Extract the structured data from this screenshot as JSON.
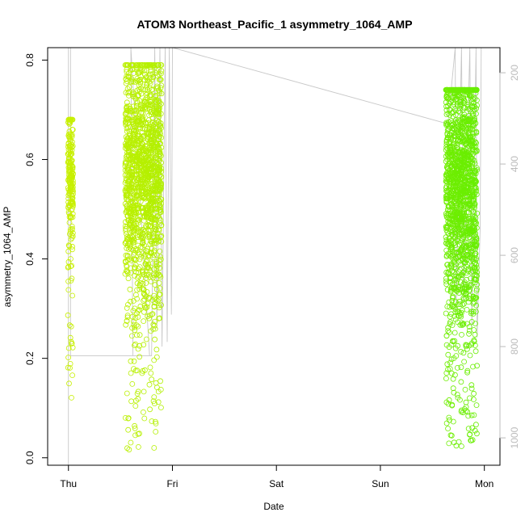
{
  "chart_data": {
    "type": "scatter",
    "title": "ATOM3 Northeast_Pacific_1 asymmetry_1064_AMP",
    "xlabel": "Date",
    "ylabel": "asymmetry_1064_AMP",
    "x_unit": "days",
    "x_ticks": [
      {
        "value": 0,
        "label": "Thu"
      },
      {
        "value": 1,
        "label": "Fri"
      },
      {
        "value": 2,
        "label": "Sat"
      },
      {
        "value": 3,
        "label": "Sun"
      },
      {
        "value": 4,
        "label": "Mon"
      }
    ],
    "xlim": [
      -0.2,
      4.15
    ],
    "ylim": [
      -0.015,
      0.825
    ],
    "y_ticks": [
      0.0,
      0.2,
      0.4,
      0.6,
      0.8
    ],
    "y_right_ticks": [
      200,
      400,
      600,
      800,
      1000
    ],
    "y_right_lim": [
      1060,
      145
    ],
    "grid": false,
    "legend": "none",
    "point_color_start": "#c8f000",
    "point_color_end": "#66ee00",
    "trace_color": "#c8c8c8",
    "clusters": [
      {
        "x_center": 0.02,
        "x_width": 0.05,
        "n": 220,
        "y_mean": 0.57,
        "y_sd": 0.07,
        "y_min": 0.12,
        "y_max": 0.68
      },
      {
        "x_center": 0.72,
        "x_width": 0.35,
        "n": 1500,
        "y_mean": 0.58,
        "y_sd": 0.12,
        "y_min": 0.01,
        "y_max": 0.79
      },
      {
        "x_center": 3.78,
        "x_width": 0.3,
        "n": 1500,
        "y_mean": 0.55,
        "y_sd": 0.14,
        "y_min": 0.02,
        "y_max": 0.74
      }
    ],
    "trace": [
      [
        0.0,
        1060
      ],
      [
        0.0,
        145
      ],
      [
        0.02,
        145
      ],
      [
        0.02,
        820
      ],
      [
        0.78,
        820
      ],
      [
        0.6,
        145
      ],
      [
        0.62,
        820
      ],
      [
        0.8,
        820
      ],
      [
        0.83,
        145
      ],
      [
        0.85,
        760
      ],
      [
        0.88,
        145
      ],
      [
        0.9,
        800
      ],
      [
        0.93,
        145
      ],
      [
        0.95,
        790
      ],
      [
        0.97,
        145
      ],
      [
        0.99,
        730
      ],
      [
        1.0,
        145
      ],
      [
        3.65,
        312
      ],
      [
        3.72,
        145
      ],
      [
        3.73,
        720
      ],
      [
        3.78,
        145
      ],
      [
        3.8,
        700
      ],
      [
        3.86,
        145
      ],
      [
        3.88,
        760
      ],
      [
        3.92,
        145
      ],
      [
        3.93,
        780
      ],
      [
        3.96,
        540
      ],
      [
        3.97,
        145
      ]
    ]
  }
}
